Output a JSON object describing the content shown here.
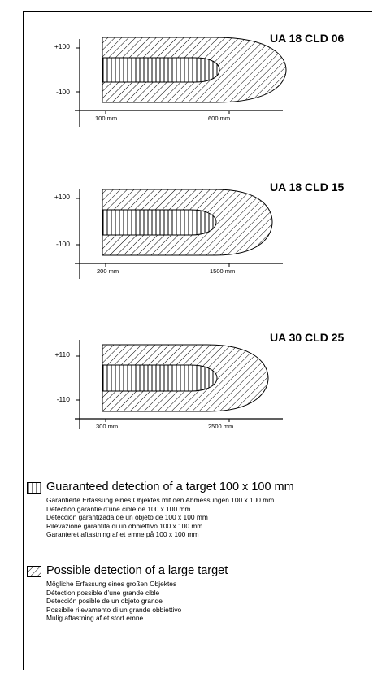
{
  "diagrams": [
    {
      "model": "UA 18 CLD 06",
      "y_top_label": "+100",
      "y_bottom_label": "-100",
      "x_near_label": "100 mm",
      "x_far_label": "600 mm"
    },
    {
      "model": "UA 18 CLD 15",
      "y_top_label": "+100",
      "y_bottom_label": "-100",
      "x_near_label": "200 mm",
      "x_far_label": "1500 mm"
    },
    {
      "model": "UA 30 CLD 25",
      "y_top_label": "+110",
      "y_bottom_label": "-110",
      "x_near_label": "300 mm",
      "x_far_label": "2500 mm"
    }
  ],
  "legend": {
    "guaranteed": {
      "title": "Guaranteed detection of a target 100 x 100 mm",
      "lines": [
        "Garantierte Erfassung eines Objektes mit den Abmessungen 100 x 100 mm",
        "Détection garantie d’une cible de 100 x 100 mm",
        "Detección garantizada de un objeto de 100 x 100 mm",
        "Rilevazione garantita di un obbiettivo 100 x 100 mm",
        "Garanteret aftastning af et emne på 100 x 100 mm"
      ]
    },
    "possible": {
      "title": "Possible detection of a large target",
      "lines": [
        "Mögliche Erfassung eines großen Objektes",
        "Détection possible d’une grande cible",
        "Detección posible de un objeto grande",
        "Possibile rilevamento di un grande obbiettivo",
        "Mulig aftastning af et stort emne"
      ]
    }
  }
}
